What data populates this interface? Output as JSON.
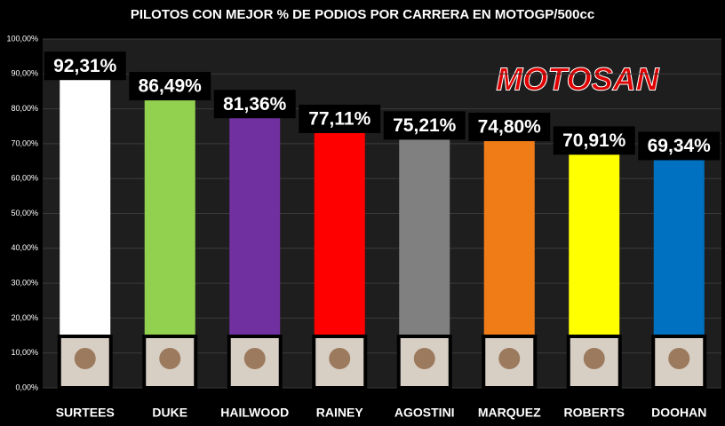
{
  "chart_data": {
    "type": "bar",
    "title": "PILOTOS CON MEJOR % DE PODIOS POR CARRERA EN MOTOGP/500cc",
    "logo": "MOTOSAN",
    "categories": [
      "SURTEES",
      "DUKE",
      "HAILWOOD",
      "RAINEY",
      "AGOSTINI",
      "MARQUEZ",
      "ROBERTS",
      "DOOHAN"
    ],
    "values": [
      92.31,
      86.49,
      81.36,
      77.11,
      75.21,
      74.8,
      70.91,
      69.34
    ],
    "value_labels": [
      "92,31%",
      "86,49%",
      "81,36%",
      "77,11%",
      "75,21%",
      "74,80%",
      "70,91%",
      "69,34%"
    ],
    "colors": [
      "#ffffff",
      "#92d050",
      "#7030a0",
      "#ff0000",
      "#808080",
      "#f07c18",
      "#ffff00",
      "#0070c0"
    ],
    "ylim": [
      0,
      100
    ],
    "yticks": [
      {
        "value": 0,
        "label": "0,00%"
      },
      {
        "value": 10,
        "label": "10,00%"
      },
      {
        "value": 20,
        "label": "20,00%"
      },
      {
        "value": 30,
        "label": "30,00%"
      },
      {
        "value": 40,
        "label": "40,00%"
      },
      {
        "value": 50,
        "label": "50,00%"
      },
      {
        "value": 60,
        "label": "60,00%"
      },
      {
        "value": 70,
        "label": "70,00%"
      },
      {
        "value": 80,
        "label": "80,00%"
      },
      {
        "value": 90,
        "label": "90,00%"
      },
      {
        "value": 100,
        "label": "100,00%"
      }
    ],
    "grid": true
  }
}
